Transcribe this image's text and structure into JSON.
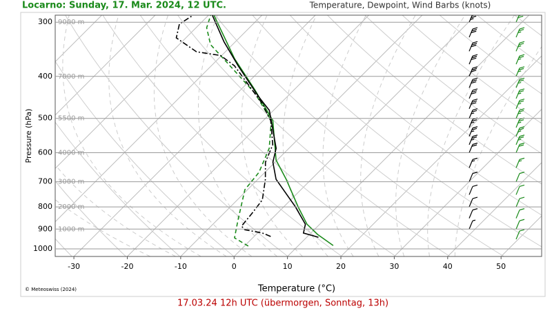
{
  "chart_data": {
    "type": "skew-t",
    "title": "Locarno: Sunday, 17. Mar. 2024, 12 UTC.",
    "subtitle": "Temperature, Dewpoint, Wind Barbs (knots)",
    "xlabel": "Temperature (°C)",
    "ylabel": "Pressure (hPa)",
    "credit": "© Meteoswiss (2024)",
    "footer": "17.03.24 12h UTC (übermorgen, Sonntag, 13h)",
    "log_y": true,
    "xlim": [
      -33.5,
      57.6
    ],
    "xticks": [
      -30,
      -20,
      -10,
      0,
      10,
      20,
      30,
      40,
      50
    ],
    "ylim": [
      1041,
      289
    ],
    "yticks": [
      300,
      400,
      500,
      600,
      700,
      800,
      900,
      1000
    ],
    "height_labels": [
      {
        "pressure": 300,
        "label": "9000 m"
      },
      {
        "pressure": 400,
        "label": "7000 m"
      },
      {
        "pressure": 500,
        "label": "5500 m"
      },
      {
        "pressure": 600,
        "label": "4000 m"
      },
      {
        "pressure": 700,
        "label": "3000 m"
      },
      {
        "pressure": 800,
        "label": "2000 m"
      },
      {
        "pressure": 900,
        "label": "1000 m"
      }
    ],
    "series": [
      {
        "color": "#1a8a1a",
        "style": "solid",
        "x": [
          16.5,
          11.5,
          7.6,
          2.7,
          -4.7,
          -10.2,
          -18.2,
          -27.3,
          -37.0,
          -49.0
        ],
        "y": [
          982,
          926,
          877,
          800,
          691,
          624,
          506,
          430,
          364,
          289
        ]
      },
      {
        "color": "#1a8a1a",
        "style": "dashed",
        "x": [
          0.7,
          -3.4,
          -6.0,
          -10.5,
          -11.1,
          -13.7,
          -18.5,
          -26.6,
          -37.6,
          -44.1,
          -48.0,
          -49.6
        ],
        "y": [
          985,
          943,
          861,
          730,
          666,
          586,
          506,
          438,
          372,
          338,
          309,
          289
        ]
      },
      {
        "color": "#000000",
        "style": "solid",
        "x": [
          12.2,
          8.6,
          7.3,
          2.2,
          -6.6,
          -10.4,
          -12.4,
          -18.5,
          -20.8,
          -25.3,
          -35.0,
          -42.1,
          -49.3
        ],
        "y": [
          940,
          919,
          877,
          800,
          691,
          631,
          586,
          506,
          479,
          446,
          378,
          333,
          289
        ]
      },
      {
        "color": "#000000",
        "style": "dashdot",
        "x": [
          3.1,
          0.9,
          -3.0,
          -4.3,
          -4.7,
          -5.3,
          -8.6,
          -11.8,
          -13.7,
          -18.6,
          -23.4,
          -35.7,
          -40.2,
          -45.4,
          -51.8,
          -53.8,
          -52.9
        ],
        "y": [
          936,
          919,
          903,
          886,
          830,
          771,
          691,
          631,
          575,
          506,
          462,
          378,
          358,
          351,
          326,
          303,
          289
        ]
      }
    ],
    "wind": [
      {
        "color": "#000000",
        "pressure": [
          300,
          325,
          350,
          375,
          400,
          425,
          450,
          475,
          500,
          525,
          550,
          575,
          600,
          650,
          700,
          750,
          800,
          850,
          900
        ],
        "speed": [
          35,
          30,
          30,
          30,
          30,
          30,
          30,
          30,
          25,
          25,
          25,
          25,
          20,
          15,
          10,
          10,
          10,
          10,
          5
        ]
      },
      {
        "color": "#1a8a1a",
        "pressure": [
          300,
          325,
          350,
          375,
          400,
          425,
          450,
          475,
          500,
          525,
          550,
          575,
          600,
          650,
          700,
          750,
          800,
          850,
          900,
          950
        ],
        "speed": [
          30,
          25,
          25,
          25,
          25,
          25,
          25,
          25,
          25,
          25,
          25,
          25,
          20,
          15,
          10,
          10,
          10,
          10,
          10,
          10
        ]
      }
    ]
  }
}
